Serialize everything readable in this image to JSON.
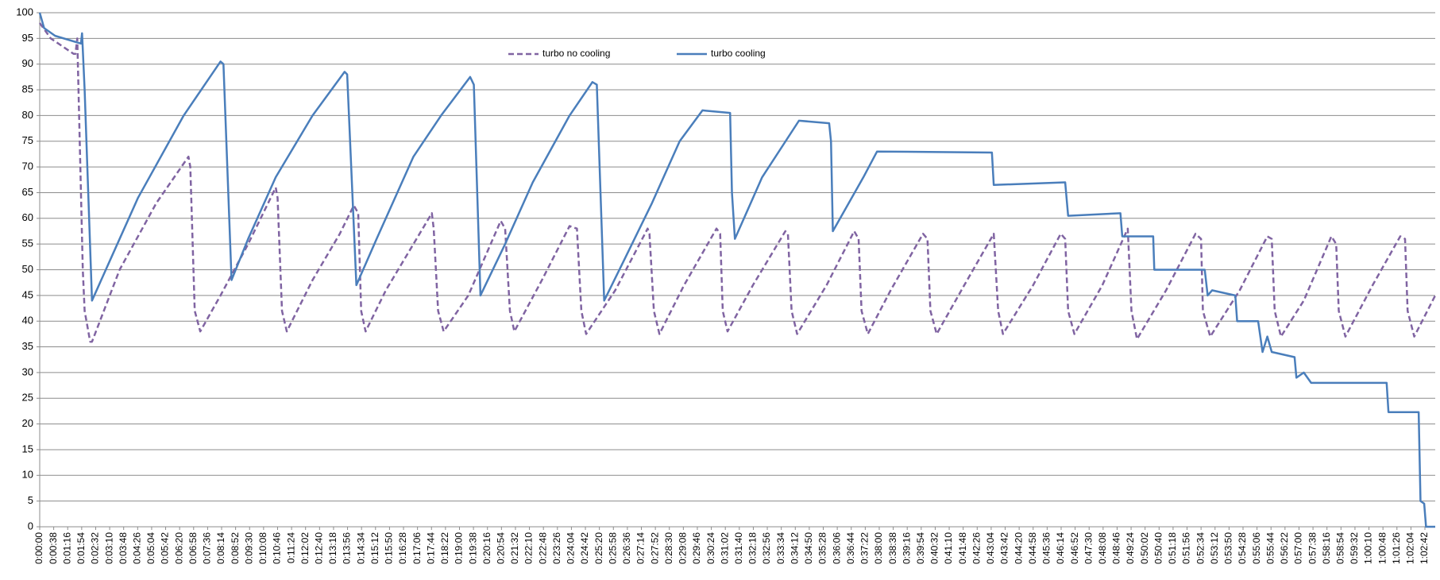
{
  "chart_data": {
    "type": "line",
    "grid": true,
    "legend": "top",
    "xlim": [
      0,
      3790
    ],
    "ylim": [
      0,
      100
    ],
    "yticks": [
      0,
      5,
      10,
      15,
      20,
      25,
      30,
      35,
      40,
      45,
      50,
      55,
      60,
      65,
      70,
      75,
      80,
      85,
      90,
      95,
      100
    ],
    "xticks": [
      {
        "value": 0,
        "label": "0:00:00"
      },
      {
        "value": 38,
        "label": "0:00:38"
      },
      {
        "value": 76,
        "label": "0:01:16"
      },
      {
        "value": 114,
        "label": "0:01:54"
      },
      {
        "value": 152,
        "label": "0:02:32"
      },
      {
        "value": 190,
        "label": "0:03:10"
      },
      {
        "value": 228,
        "label": "0:03:48"
      },
      {
        "value": 266,
        "label": "0:04:26"
      },
      {
        "value": 304,
        "label": "0:05:04"
      },
      {
        "value": 342,
        "label": "0:05:42"
      },
      {
        "value": 380,
        "label": "0:06:20"
      },
      {
        "value": 418,
        "label": "0:06:58"
      },
      {
        "value": 456,
        "label": "0:07:36"
      },
      {
        "value": 494,
        "label": "0:08:14"
      },
      {
        "value": 532,
        "label": "0:08:52"
      },
      {
        "value": 570,
        "label": "0:09:30"
      },
      {
        "value": 608,
        "label": "0:10:08"
      },
      {
        "value": 646,
        "label": "0:10:46"
      },
      {
        "value": 684,
        "label": "0:11:24"
      },
      {
        "value": 722,
        "label": "0:12:02"
      },
      {
        "value": 760,
        "label": "0:12:40"
      },
      {
        "value": 798,
        "label": "0:13:18"
      },
      {
        "value": 836,
        "label": "0:13:56"
      },
      {
        "value": 874,
        "label": "0:14:34"
      },
      {
        "value": 912,
        "label": "0:15:12"
      },
      {
        "value": 950,
        "label": "0:15:50"
      },
      {
        "value": 988,
        "label": "0:16:28"
      },
      {
        "value": 1026,
        "label": "0:17:06"
      },
      {
        "value": 1064,
        "label": "0:17:44"
      },
      {
        "value": 1102,
        "label": "0:18:22"
      },
      {
        "value": 1140,
        "label": "0:19:00"
      },
      {
        "value": 1178,
        "label": "0:19:38"
      },
      {
        "value": 1216,
        "label": "0:20:16"
      },
      {
        "value": 1254,
        "label": "0:20:54"
      },
      {
        "value": 1292,
        "label": "0:21:32"
      },
      {
        "value": 1330,
        "label": "0:22:10"
      },
      {
        "value": 1368,
        "label": "0:22:48"
      },
      {
        "value": 1406,
        "label": "0:23:26"
      },
      {
        "value": 1444,
        "label": "0:24:04"
      },
      {
        "value": 1482,
        "label": "0:24:42"
      },
      {
        "value": 1520,
        "label": "0:25:20"
      },
      {
        "value": 1558,
        "label": "0:25:58"
      },
      {
        "value": 1596,
        "label": "0:26:36"
      },
      {
        "value": 1634,
        "label": "0:27:14"
      },
      {
        "value": 1672,
        "label": "0:27:52"
      },
      {
        "value": 1710,
        "label": "0:28:30"
      },
      {
        "value": 1748,
        "label": "0:29:08"
      },
      {
        "value": 1786,
        "label": "0:29:46"
      },
      {
        "value": 1824,
        "label": "0:30:24"
      },
      {
        "value": 1862,
        "label": "0:31:02"
      },
      {
        "value": 1900,
        "label": "0:31:40"
      },
      {
        "value": 1938,
        "label": "0:32:18"
      },
      {
        "value": 1976,
        "label": "0:32:56"
      },
      {
        "value": 2014,
        "label": "0:33:34"
      },
      {
        "value": 2052,
        "label": "0:34:12"
      },
      {
        "value": 2090,
        "label": "0:34:50"
      },
      {
        "value": 2128,
        "label": "0:35:28"
      },
      {
        "value": 2166,
        "label": "0:36:06"
      },
      {
        "value": 2204,
        "label": "0:36:44"
      },
      {
        "value": 2242,
        "label": "0:37:22"
      },
      {
        "value": 2280,
        "label": "0:38:00"
      },
      {
        "value": 2318,
        "label": "0:38:38"
      },
      {
        "value": 2356,
        "label": "0:39:16"
      },
      {
        "value": 2394,
        "label": "0:39:54"
      },
      {
        "value": 2432,
        "label": "0:40:32"
      },
      {
        "value": 2470,
        "label": "0:41:10"
      },
      {
        "value": 2508,
        "label": "0:41:48"
      },
      {
        "value": 2546,
        "label": "0:42:26"
      },
      {
        "value": 2584,
        "label": "0:43:04"
      },
      {
        "value": 2622,
        "label": "0:43:42"
      },
      {
        "value": 2660,
        "label": "0:44:20"
      },
      {
        "value": 2698,
        "label": "0:44:58"
      },
      {
        "value": 2736,
        "label": "0:45:36"
      },
      {
        "value": 2774,
        "label": "0:46:14"
      },
      {
        "value": 2812,
        "label": "0:46:52"
      },
      {
        "value": 2850,
        "label": "0:47:30"
      },
      {
        "value": 2888,
        "label": "0:48:08"
      },
      {
        "value": 2926,
        "label": "0:48:46"
      },
      {
        "value": 2964,
        "label": "0:49:24"
      },
      {
        "value": 3002,
        "label": "0:50:02"
      },
      {
        "value": 3040,
        "label": "0:50:40"
      },
      {
        "value": 3078,
        "label": "0:51:18"
      },
      {
        "value": 3116,
        "label": "0:51:56"
      },
      {
        "value": 3154,
        "label": "0:52:34"
      },
      {
        "value": 3192,
        "label": "0:53:12"
      },
      {
        "value": 3230,
        "label": "0:53:50"
      },
      {
        "value": 3268,
        "label": "0:54:28"
      },
      {
        "value": 3306,
        "label": "0:55:06"
      },
      {
        "value": 3344,
        "label": "0:55:44"
      },
      {
        "value": 3382,
        "label": "0:56:22"
      },
      {
        "value": 3420,
        "label": "0:57:00"
      },
      {
        "value": 3458,
        "label": "0:57:38"
      },
      {
        "value": 3496,
        "label": "0:58:16"
      },
      {
        "value": 3534,
        "label": "0:58:54"
      },
      {
        "value": 3572,
        "label": "0:59:32"
      },
      {
        "value": 3610,
        "label": "1:00:10"
      },
      {
        "value": 3648,
        "label": "1:00:48"
      },
      {
        "value": 3686,
        "label": "1:01:26"
      },
      {
        "value": 3724,
        "label": "1:02:04"
      },
      {
        "value": 3762,
        "label": "1:02:42"
      }
    ],
    "series": [
      {
        "name": "turbo no cooling",
        "color": "#8064a2",
        "dashed": true,
        "x": [
          0,
          30,
          92,
          97,
          102,
          117,
          122,
          137,
          142,
          217,
          317,
          404,
          409,
          421,
          436,
          491,
          566,
          641,
          646,
          658,
          671,
          741,
          815,
          853,
          865,
          873,
          885,
          940,
          1015,
          1065,
          1070,
          1082,
          1097,
          1164,
          1252,
          1264,
          1277,
          1289,
          1364,
          1439,
          1459,
          1471,
          1484,
          1563,
          1651,
          1656,
          1668,
          1683,
          1750,
          1838,
          1848,
          1855,
          1868,
          1937,
          2025,
          2032,
          2042,
          2057,
          2137,
          2212,
          2224,
          2232,
          2249,
          2311,
          2399,
          2411,
          2419,
          2436,
          2511,
          2591,
          2603,
          2616,
          2698,
          2773,
          2785,
          2793,
          2810,
          2886,
          2955,
          2965,
          2980,
          3059,
          3139,
          3154,
          3159,
          3179,
          3259,
          3334,
          3346,
          3354,
          3371,
          3433,
          3508,
          3521,
          3528,
          3546,
          3620,
          3695,
          3708,
          3715,
          3733,
          3790
        ],
        "values": [
          98,
          95,
          92,
          92,
          95,
          50,
          42,
          36,
          36,
          50,
          63,
          72,
          70,
          42,
          38,
          45,
          55,
          66,
          64,
          42,
          38,
          48,
          57,
          62.5,
          61,
          42,
          38,
          46,
          55,
          61,
          58,
          42,
          38,
          45,
          59.5,
          58,
          42,
          38,
          48,
          58.5,
          58,
          42,
          37.5,
          46,
          58,
          57,
          42,
          37.5,
          47,
          58,
          57,
          42,
          38,
          47,
          57.5,
          57,
          42,
          37.5,
          47,
          57.5,
          56,
          42,
          37.5,
          46,
          57,
          56,
          42,
          37.5,
          47,
          57,
          42,
          37.5,
          47,
          57,
          56,
          42,
          37.5,
          47,
          58,
          42,
          36.5,
          46,
          57,
          56,
          42,
          37,
          46,
          56.5,
          56,
          42,
          37,
          44,
          56.5,
          55,
          42,
          37,
          47,
          56.5,
          56,
          42,
          37,
          45
        ]
      },
      {
        "name": "turbo cooling",
        "color": "#4a7ebb",
        "dashed": false,
        "x": [
          0,
          12,
          42,
          112,
          115,
          122,
          142,
          192,
          267,
          391,
          491,
          499,
          521,
          566,
          641,
          741,
          828,
          835,
          860,
          915,
          1015,
          1090,
          1169,
          1179,
          1197,
          1264,
          1339,
          1439,
          1501,
          1513,
          1533,
          1588,
          1663,
          1738,
          1800,
          1875,
          1880,
          1888,
          1962,
          2062,
          2144,
          2149,
          2154,
          2237,
          2274,
          2586,
          2591,
          2785,
          2793,
          2935,
          2940,
          3024,
          3027,
          3164,
          3172,
          3184,
          3247,
          3252,
          3309,
          3321,
          3334,
          3346,
          3408,
          3413,
          3433,
          3453,
          3658,
          3663,
          3745,
          3750,
          3760,
          3765,
          3790
        ],
        "values": [
          100,
          97,
          95.5,
          94,
          96,
          85,
          44,
          52,
          64,
          80,
          90.5,
          90,
          48,
          56,
          68,
          80,
          88.5,
          88,
          47,
          56,
          72,
          80,
          87.5,
          86,
          45,
          55,
          67,
          80,
          86.5,
          86,
          44,
          52,
          63,
          75,
          81,
          80.5,
          65,
          56,
          68,
          79,
          78.5,
          75,
          57.5,
          68,
          73,
          72.8,
          66.5,
          67,
          60.5,
          61,
          56.5,
          56.5,
          50,
          50,
          45,
          46,
          45,
          40,
          40,
          34,
          37,
          34,
          33,
          29,
          30,
          28,
          28,
          22.3,
          22.3,
          5,
          4.5,
          0,
          0
        ]
      }
    ]
  }
}
